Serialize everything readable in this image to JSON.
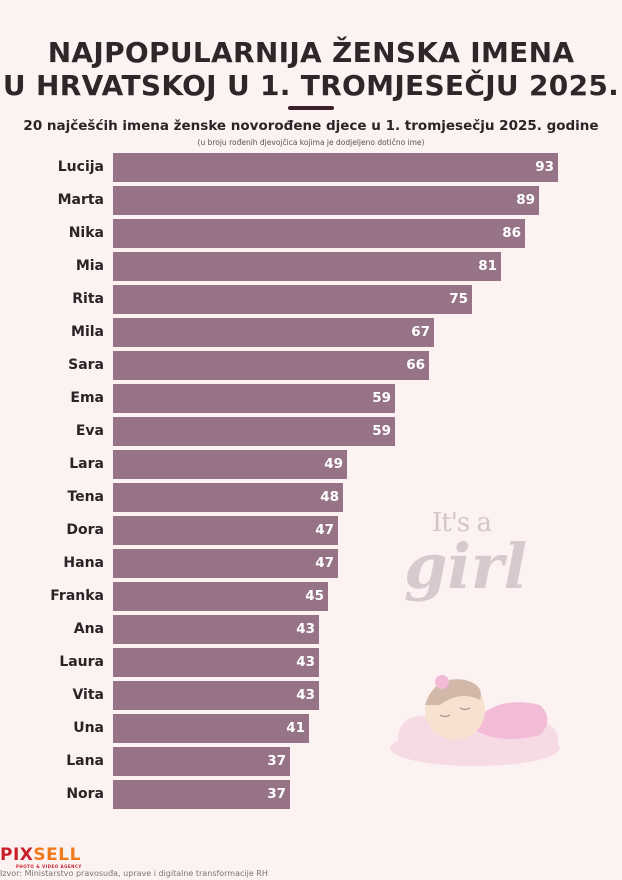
{
  "header": {
    "title_line1": "NAJPOPULARNIJA ŽENSKA IMENA",
    "title_line2": "U HRVATSKOJ U 1. TROMJESEČJU 2025.",
    "subtitle": "20 najčešćih imena ženske novorođene djece u 1. tromjesečju 2025. godine",
    "note": "(u broju rođenih djevojčica kojima je dodjeljeno dotično ime)"
  },
  "decoration": {
    "its_a": "It's a",
    "girl": "girl"
  },
  "footer": {
    "logo_pix": "PIX",
    "logo_sell": "SELL",
    "logo_sub": "PHOTO & VIDEO AGENCY",
    "source": "Izvor: Ministarstvo pravosuđa, uprave i digitalne transformacije RH"
  },
  "colors": {
    "bar": "#967386",
    "background": "#fbf2f1",
    "divider": "#3d1f2a"
  },
  "chart_data": {
    "type": "bar",
    "orientation": "horizontal",
    "title": "NAJPOPULARNIJA ŽENSKA IMENA U HRVATSKOJ U 1. TROMJESEČJU 2025.",
    "subtitle": "20 najčešćih imena ženske novorođene djece u 1. tromjesečju 2025. godine",
    "xlabel": "",
    "ylabel": "",
    "grid": false,
    "legend": null,
    "categories": [
      "Lucija",
      "Marta",
      "Nika",
      "Mia",
      "Rita",
      "Mila",
      "Sara",
      "Ema",
      "Eva",
      "Lara",
      "Tena",
      "Dora",
      "Hana",
      "Franka",
      "Ana",
      "Laura",
      "Vita",
      "Una",
      "Lana",
      "Nora"
    ],
    "values": [
      93,
      89,
      86,
      81,
      75,
      67,
      66,
      59,
      59,
      49,
      48,
      47,
      47,
      45,
      43,
      43,
      43,
      41,
      37,
      37
    ],
    "xlim": [
      0,
      93
    ]
  }
}
